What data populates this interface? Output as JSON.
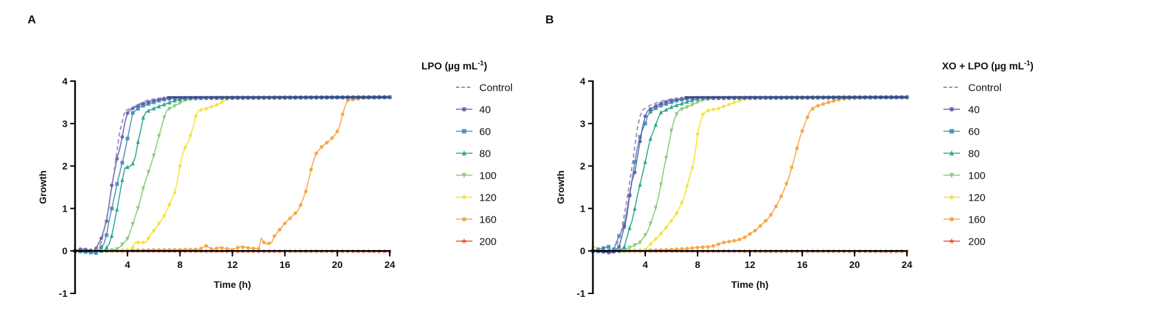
{
  "chart_data": [
    {
      "type": "line",
      "panel_label": "A",
      "xlabel": "Time (h)",
      "ylabel": "Growth",
      "xlim": [
        0,
        24
      ],
      "ylim": [
        -1,
        4
      ],
      "xticks": [
        "4",
        "8",
        "12",
        "16",
        "20",
        "24"
      ],
      "yticks": [
        "-1",
        "0",
        "1",
        "2",
        "3",
        "4"
      ],
      "legend_title": "LPO (µg mL",
      "legend_title_sup": "-1",
      "legend_title_end": ")",
      "legend_position": "right",
      "series": [
        {
          "name": "Control",
          "color": "#9a7fbf",
          "marker": "none",
          "dashed": true,
          "points": [
            [
              0,
              0
            ],
            [
              1.5,
              0
            ],
            [
              2,
              0.2
            ],
            [
              2.5,
              0.9
            ],
            [
              3,
              1.9
            ],
            [
              3.4,
              2.8
            ],
            [
              3.8,
              3.3
            ],
            [
              4.5,
              3.4
            ],
            [
              5.5,
              3.55
            ],
            [
              6.5,
              3.6
            ],
            [
              24,
              3.62
            ]
          ]
        },
        {
          "name": "40",
          "color": "#5b5ea6",
          "marker": "circle",
          "points": [
            [
              0,
              0
            ],
            [
              0.5,
              0.05
            ],
            [
              1.5,
              0
            ],
            [
              2,
              0.3
            ],
            [
              2.45,
              0.75
            ],
            [
              2.77,
              1.5
            ],
            [
              3,
              1.85
            ],
            [
              3.25,
              2.25
            ],
            [
              3.5,
              2.5
            ],
            [
              3.77,
              3.0
            ],
            [
              4.05,
              3.3
            ],
            [
              5,
              3.45
            ],
            [
              6,
              3.55
            ],
            [
              7,
              3.6
            ],
            [
              24,
              3.62
            ]
          ]
        },
        {
          "name": "60",
          "color": "#3f8bb5",
          "marker": "square",
          "points": [
            [
              0,
              0
            ],
            [
              1.6,
              -0.05
            ],
            [
              2.3,
              0.2
            ],
            [
              2.6,
              0.72
            ],
            [
              2.98,
              1.25
            ],
            [
              3.25,
              1.65
            ],
            [
              3.5,
              1.95
            ],
            [
              3.77,
              2.3
            ],
            [
              4.2,
              2.95
            ],
            [
              4.4,
              3.25
            ],
            [
              5,
              3.4
            ],
            [
              6.5,
              3.55
            ],
            [
              7.5,
              3.6
            ],
            [
              24,
              3.62
            ]
          ]
        },
        {
          "name": "80",
          "color": "#21a08a",
          "marker": "triangle-up",
          "points": [
            [
              0,
              0
            ],
            [
              2.2,
              0
            ],
            [
              2.7,
              0.2
            ],
            [
              3.25,
              1.05
            ],
            [
              3.5,
              1.5
            ],
            [
              3.77,
              1.95
            ],
            [
              4.3,
              2.0
            ],
            [
              4.56,
              2.15
            ],
            [
              4.82,
              2.6
            ],
            [
              5.1,
              2.95
            ],
            [
              5.26,
              3.25
            ],
            [
              5.96,
              3.35
            ],
            [
              6.8,
              3.45
            ],
            [
              7.7,
              3.55
            ],
            [
              8.6,
              3.6
            ],
            [
              24,
              3.62
            ]
          ]
        },
        {
          "name": "100",
          "color": "#80c96c",
          "marker": "triangle-down",
          "points": [
            [
              0,
              0
            ],
            [
              2.5,
              0
            ],
            [
              3.3,
              0.05
            ],
            [
              4.03,
              0.3
            ],
            [
              4.47,
              0.7
            ],
            [
              4.9,
              1.1
            ],
            [
              5.26,
              1.55
            ],
            [
              5.7,
              1.95
            ],
            [
              5.96,
              2.2
            ],
            [
              6.3,
              2.6
            ],
            [
              6.67,
              3.0
            ],
            [
              6.93,
              3.3
            ],
            [
              7.5,
              3.4
            ],
            [
              8.4,
              3.55
            ],
            [
              9.3,
              3.6
            ],
            [
              24,
              3.62
            ]
          ]
        },
        {
          "name": "120",
          "color": "#f4e02c",
          "marker": "diamond",
          "points": [
            [
              0,
              0
            ],
            [
              4.3,
              0.02
            ],
            [
              4.56,
              0.2
            ],
            [
              5.1,
              0.2
            ],
            [
              5.4,
              0.2
            ],
            [
              5.8,
              0.4
            ],
            [
              6.3,
              0.6
            ],
            [
              6.84,
              0.85
            ],
            [
              7.28,
              1.15
            ],
            [
              7.7,
              1.45
            ],
            [
              8,
              2.0
            ],
            [
              8.25,
              2.35
            ],
            [
              8.6,
              2.55
            ],
            [
              8.95,
              2.85
            ],
            [
              9.3,
              3.3
            ],
            [
              10,
              3.35
            ],
            [
              10.9,
              3.45
            ],
            [
              11.75,
              3.6
            ],
            [
              24,
              3.62
            ]
          ]
        },
        {
          "name": "160",
          "color": "#f7a23c",
          "marker": "circle",
          "points": [
            [
              0,
              0
            ],
            [
              8,
              0.03
            ],
            [
              9.5,
              0.04
            ],
            [
              10,
              0.12
            ],
            [
              10.5,
              0.03
            ],
            [
              11,
              0.08
            ],
            [
              12,
              0.03
            ],
            [
              12.6,
              0.1
            ],
            [
              13.5,
              0.06
            ],
            [
              14,
              0.05
            ],
            [
              14.2,
              0.3
            ],
            [
              14.5,
              0.15
            ],
            [
              15,
              0.2
            ],
            [
              15.2,
              0.35
            ],
            [
              15.6,
              0.5
            ],
            [
              16,
              0.65
            ],
            [
              16.5,
              0.8
            ],
            [
              17,
              0.95
            ],
            [
              17.3,
              1.15
            ],
            [
              17.6,
              1.4
            ],
            [
              17.8,
              1.65
            ],
            [
              18.1,
              2.05
            ],
            [
              18.4,
              2.3
            ],
            [
              18.8,
              2.45
            ],
            [
              19.4,
              2.6
            ],
            [
              19.9,
              2.75
            ],
            [
              20.2,
              2.95
            ],
            [
              20.5,
              3.35
            ],
            [
              20.8,
              3.55
            ],
            [
              22,
              3.6
            ],
            [
              24,
              3.62
            ]
          ]
        },
        {
          "name": "200",
          "color": "#e8432a",
          "marker": "star",
          "points": [
            [
              0,
              0
            ],
            [
              24,
              -0.01
            ]
          ]
        }
      ]
    },
    {
      "type": "line",
      "panel_label": "B",
      "xlabel": "Time (h)",
      "ylabel": "Growth",
      "xlim": [
        0,
        24
      ],
      "ylim": [
        -1,
        4
      ],
      "xticks": [
        "4",
        "8",
        "12",
        "16",
        "20",
        "24"
      ],
      "yticks": [
        "-1",
        "0",
        "1",
        "2",
        "3",
        "4"
      ],
      "legend_title": "XO + LPO (µg mL",
      "legend_title_sup": "-1",
      "legend_title_end": ")",
      "legend_position": "right",
      "series": [
        {
          "name": "Control",
          "color": "#9a7fbf",
          "marker": "none",
          "dashed": true,
          "points": [
            [
              0,
              0
            ],
            [
              1.7,
              0
            ],
            [
              2.2,
              0.5
            ],
            [
              2.6,
              1.2
            ],
            [
              3,
              2.0
            ],
            [
              3.4,
              2.9
            ],
            [
              3.7,
              3.3
            ],
            [
              4.5,
              3.45
            ],
            [
              5.5,
              3.55
            ],
            [
              6.5,
              3.6
            ],
            [
              24,
              3.62
            ]
          ]
        },
        {
          "name": "40",
          "color": "#5b5ea6",
          "marker": "circle",
          "points": [
            [
              0,
              0
            ],
            [
              1.5,
              -0.05
            ],
            [
              2,
              0.1
            ],
            [
              2.35,
              0.5
            ],
            [
              2.7,
              0.95
            ],
            [
              2.87,
              1.55
            ],
            [
              3.2,
              1.85
            ],
            [
              3.48,
              2.35
            ],
            [
              3.74,
              2.85
            ],
            [
              3.97,
              3.15
            ],
            [
              4.17,
              3.3
            ],
            [
              5,
              3.45
            ],
            [
              6,
              3.55
            ],
            [
              7,
              3.6
            ],
            [
              24,
              3.62
            ]
          ]
        },
        {
          "name": "60",
          "color": "#3f8bb5",
          "marker": "square",
          "points": [
            [
              0,
              0
            ],
            [
              1.2,
              0.1
            ],
            [
              1.5,
              -0.05
            ],
            [
              1.9,
              0.3
            ],
            [
              2.35,
              0.55
            ],
            [
              2.6,
              0.95
            ],
            [
              2.96,
              1.6
            ],
            [
              3.3,
              2.3
            ],
            [
              3.65,
              2.75
            ],
            [
              4,
              3.0
            ],
            [
              4.26,
              3.25
            ],
            [
              5,
              3.4
            ],
            [
              6.5,
              3.55
            ],
            [
              7.5,
              3.6
            ],
            [
              24,
              3.62
            ]
          ]
        },
        {
          "name": "80",
          "color": "#21a08a",
          "marker": "triangle-up",
          "points": [
            [
              0,
              0
            ],
            [
              2,
              0
            ],
            [
              2.43,
              0.1
            ],
            [
              2.7,
              0.45
            ],
            [
              3.04,
              0.75
            ],
            [
              3.4,
              1.3
            ],
            [
              3.9,
              1.95
            ],
            [
              4.35,
              2.6
            ],
            [
              4.78,
              2.95
            ],
            [
              5.13,
              3.25
            ],
            [
              6.1,
              3.4
            ],
            [
              7.1,
              3.5
            ],
            [
              8.2,
              3.6
            ],
            [
              24,
              3.62
            ]
          ]
        },
        {
          "name": "100",
          "color": "#80c96c",
          "marker": "triangle-down",
          "points": [
            [
              0,
              0
            ],
            [
              2.4,
              0.02
            ],
            [
              2.96,
              0.1
            ],
            [
              3.6,
              0.2
            ],
            [
              4.17,
              0.45
            ],
            [
              4.7,
              0.9
            ],
            [
              5.04,
              1.3
            ],
            [
              5.4,
              1.9
            ],
            [
              5.74,
              2.4
            ],
            [
              6.1,
              3.0
            ],
            [
              6.5,
              3.3
            ],
            [
              7.3,
              3.4
            ],
            [
              8.35,
              3.55
            ],
            [
              9.2,
              3.6
            ],
            [
              24,
              3.62
            ]
          ]
        },
        {
          "name": "120",
          "color": "#f4e02c",
          "marker": "diamond",
          "points": [
            [
              0,
              0.1
            ],
            [
              1,
              0
            ],
            [
              4,
              0.02
            ],
            [
              4.35,
              0.15
            ],
            [
              5.04,
              0.35
            ],
            [
              5.74,
              0.6
            ],
            [
              6.43,
              0.9
            ],
            [
              6.96,
              1.25
            ],
            [
              7.3,
              1.65
            ],
            [
              7.74,
              2.1
            ],
            [
              8,
              2.75
            ],
            [
              8.35,
              3.2
            ],
            [
              8.7,
              3.3
            ],
            [
              9.56,
              3.35
            ],
            [
              10.4,
              3.45
            ],
            [
              11.3,
              3.55
            ],
            [
              11.8,
              3.6
            ],
            [
              24,
              3.62
            ]
          ]
        },
        {
          "name": "160",
          "color": "#f7a23c",
          "marker": "circle",
          "points": [
            [
              0,
              0
            ],
            [
              5,
              0.02
            ],
            [
              7,
              0.05
            ],
            [
              8,
              0.08
            ],
            [
              9,
              0.1
            ],
            [
              10,
              0.2
            ],
            [
              11,
              0.25
            ],
            [
              11.5,
              0.3
            ],
            [
              12,
              0.4
            ],
            [
              12.5,
              0.5
            ],
            [
              13,
              0.65
            ],
            [
              13.5,
              0.8
            ],
            [
              14,
              1.05
            ],
            [
              14.5,
              1.35
            ],
            [
              15,
              1.75
            ],
            [
              15.5,
              2.3
            ],
            [
              15.8,
              2.65
            ],
            [
              16.2,
              3.0
            ],
            [
              16.6,
              3.3
            ],
            [
              17,
              3.4
            ],
            [
              18,
              3.5
            ],
            [
              19,
              3.58
            ],
            [
              20,
              3.6
            ],
            [
              24,
              3.62
            ]
          ]
        },
        {
          "name": "200",
          "color": "#e8432a",
          "marker": "star",
          "points": [
            [
              0,
              0
            ],
            [
              24,
              -0.01
            ]
          ]
        }
      ]
    }
  ]
}
